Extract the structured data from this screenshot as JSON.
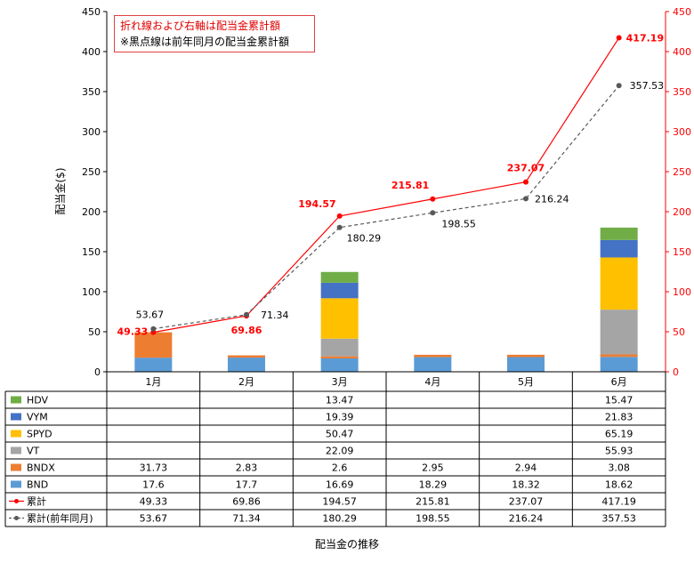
{
  "chart_data": {
    "type": "bar",
    "stacked": true,
    "categories": [
      "1月",
      "2月",
      "3月",
      "4月",
      "5月",
      "6月"
    ],
    "xlabel": "配当金の推移",
    "ylabel": "配当金($)",
    "ylim": [
      0,
      450
    ],
    "y2lim": [
      0,
      450
    ],
    "yticks": [
      "0",
      "50",
      "100",
      "150",
      "200",
      "250",
      "300",
      "350",
      "400",
      "450"
    ],
    "grid": false,
    "series": [
      {
        "name": "BND",
        "kind": "bar",
        "color": "#5b9bd5",
        "values": [
          17.6,
          17.7,
          16.69,
          18.29,
          18.32,
          18.62
        ],
        "cells": [
          "17.6",
          "17.7",
          "16.69",
          "18.29",
          "18.32",
          "18.62"
        ]
      },
      {
        "name": "BNDX",
        "kind": "bar",
        "color": "#ed7d31",
        "values": [
          31.73,
          2.83,
          2.6,
          2.95,
          2.94,
          3.08
        ],
        "cells": [
          "31.73",
          "2.83",
          "2.6",
          "2.95",
          "2.94",
          "3.08"
        ]
      },
      {
        "name": "VT",
        "kind": "bar",
        "color": "#a5a5a5",
        "values": [
          null,
          null,
          22.09,
          null,
          null,
          55.93
        ],
        "cells": [
          "",
          "",
          "22.09",
          "",
          "",
          "55.93"
        ]
      },
      {
        "name": "SPYD",
        "kind": "bar",
        "color": "#ffc000",
        "values": [
          null,
          null,
          50.47,
          null,
          null,
          65.19
        ],
        "cells": [
          "",
          "",
          "50.47",
          "",
          "",
          "65.19"
        ]
      },
      {
        "name": "VYM",
        "kind": "bar",
        "color": "#4472c4",
        "values": [
          null,
          null,
          19.39,
          null,
          null,
          21.83
        ],
        "cells": [
          "",
          "",
          "19.39",
          "",
          "",
          "21.83"
        ]
      },
      {
        "name": "HDV",
        "kind": "bar",
        "color": "#70ad47",
        "values": [
          null,
          null,
          13.47,
          null,
          null,
          15.47
        ],
        "cells": [
          "",
          "",
          "13.47",
          "",
          "",
          "15.47"
        ]
      },
      {
        "name": "累計",
        "kind": "line",
        "axis": "right",
        "color": "#ff0000",
        "values": [
          49.33,
          69.86,
          194.57,
          215.81,
          237.07,
          417.19
        ],
        "cells": [
          "49.33",
          "69.86",
          "194.57",
          "215.81",
          "237.07",
          "417.19"
        ]
      },
      {
        "name": "累計(前年同月)",
        "kind": "line",
        "axis": "right",
        "dashed": true,
        "color": "#595959",
        "values": [
          53.67,
          71.34,
          180.29,
          198.55,
          216.24,
          357.53
        ],
        "cells": [
          "53.67",
          "71.34",
          "180.29",
          "198.55",
          "216.24",
          "357.53"
        ]
      }
    ],
    "annotations": [
      "折れ線および右軸は配当金累計額",
      "※黒点線は前年同月の配当金累計額"
    ]
  }
}
